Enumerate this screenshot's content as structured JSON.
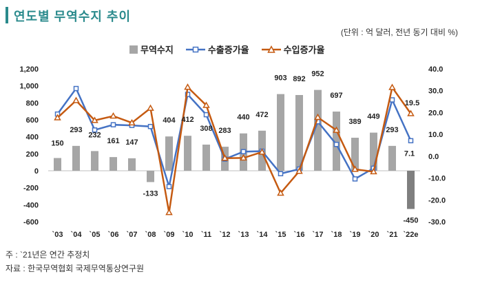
{
  "header": {
    "title": "연도별 무역수지 추이",
    "unit_note": "(단위 : 억 달러, 전년 동기 대비 %)"
  },
  "legend": {
    "balance": "무역수지",
    "export": "수출증가율",
    "import": "수입증가율"
  },
  "notes": {
    "note": "주 : `21년은 연간 추정치",
    "source": "자료 : 한국무역협회 국제무역통상연구원"
  },
  "colors": {
    "bar": "#a6a6a6",
    "export": "#4472c4",
    "import": "#c55a11",
    "title": "#2a8a8c"
  },
  "chart_data": {
    "type": "bar+line",
    "categories": [
      "`03",
      "`04",
      "`05",
      "`06",
      "`07",
      "`08",
      "`09",
      "`10",
      "`11",
      "`12",
      "`13",
      "`14",
      "`15",
      "`16",
      "`17",
      "`18",
      "`19",
      "`20",
      "`21",
      "`22e"
    ],
    "y_left_ticks": [
      "1,200",
      "1,000",
      "800",
      "600",
      "400",
      "200",
      "0",
      "-200",
      "-400",
      "-600"
    ],
    "y_right_ticks": [
      "40.0",
      "30.0",
      "20.0",
      "10.0",
      "0.0",
      "-10.0",
      "-20.0",
      "-30.0"
    ],
    "y_left_range": [
      -600,
      1200
    ],
    "y_right_range": [
      -30,
      40
    ],
    "series": [
      {
        "name": "무역수지",
        "kind": "bar",
        "axis": "left",
        "values": [
          150,
          293,
          232,
          161,
          147,
          -133,
          404,
          412,
          308,
          283,
          440,
          472,
          903,
          892,
          952,
          697,
          389,
          449,
          293,
          -450
        ],
        "labels": [
          "150",
          "293",
          "232",
          "161",
          "147",
          "-133",
          "404",
          "412",
          "308",
          "283",
          "440",
          "472",
          "903",
          "892",
          "952",
          "697",
          "389",
          "449",
          "293",
          "-450"
        ]
      },
      {
        "name": "수출증가율",
        "kind": "line",
        "axis": "right",
        "values": [
          19.3,
          31.0,
          12.0,
          14.4,
          14.1,
          13.6,
          -13.9,
          28.3,
          19.0,
          -1.3,
          2.1,
          2.3,
          -8.0,
          -5.9,
          15.8,
          5.4,
          -10.4,
          -5.5,
          25.8,
          7.1
        ],
        "end_label": "7.1"
      },
      {
        "name": "수입증가율",
        "kind": "line",
        "axis": "right",
        "values": [
          17.6,
          25.5,
          16.4,
          18.4,
          15.3,
          22.0,
          -25.8,
          31.6,
          23.3,
          -0.9,
          -0.8,
          1.9,
          -16.9,
          -6.9,
          17.8,
          11.9,
          -6.0,
          -7.1,
          31.5,
          19.5
        ],
        "end_label": "19.5"
      }
    ]
  }
}
